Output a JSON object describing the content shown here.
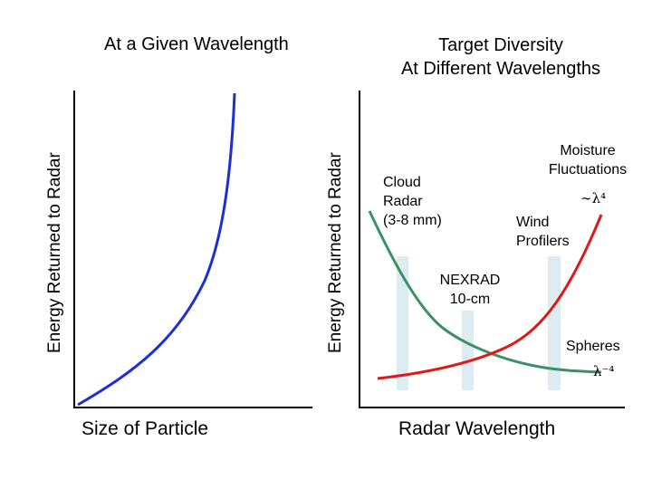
{
  "left_panel": {
    "title": "At a Given Wavelength",
    "ylabel": "Energy Returned to Radar",
    "xlabel": "Size of Particle",
    "curve_color": "#1a2fd6"
  },
  "right_panel": {
    "title_line1": "Target Diversity",
    "title_line2": "At Different Wavelengths",
    "ylabel": "Energy Returned to Radar",
    "xlabel": "Radar Wavelength",
    "cloud_radar": [
      "Cloud",
      "Radar",
      "(3-8 mm)"
    ],
    "moisture": [
      "Moisture",
      "Fluctuations"
    ],
    "lambda_pos": "∼λ⁴",
    "wind": [
      "Wind",
      "Profilers"
    ],
    "nexrad": [
      "NEXRAD",
      "10-cm"
    ],
    "spheres": "Spheres",
    "lambda_neg": "λ⁻⁴",
    "colors": {
      "decreasing_curve": "#3a9168",
      "increasing_curve": "#e01818",
      "band": "#dcecf0"
    }
  }
}
